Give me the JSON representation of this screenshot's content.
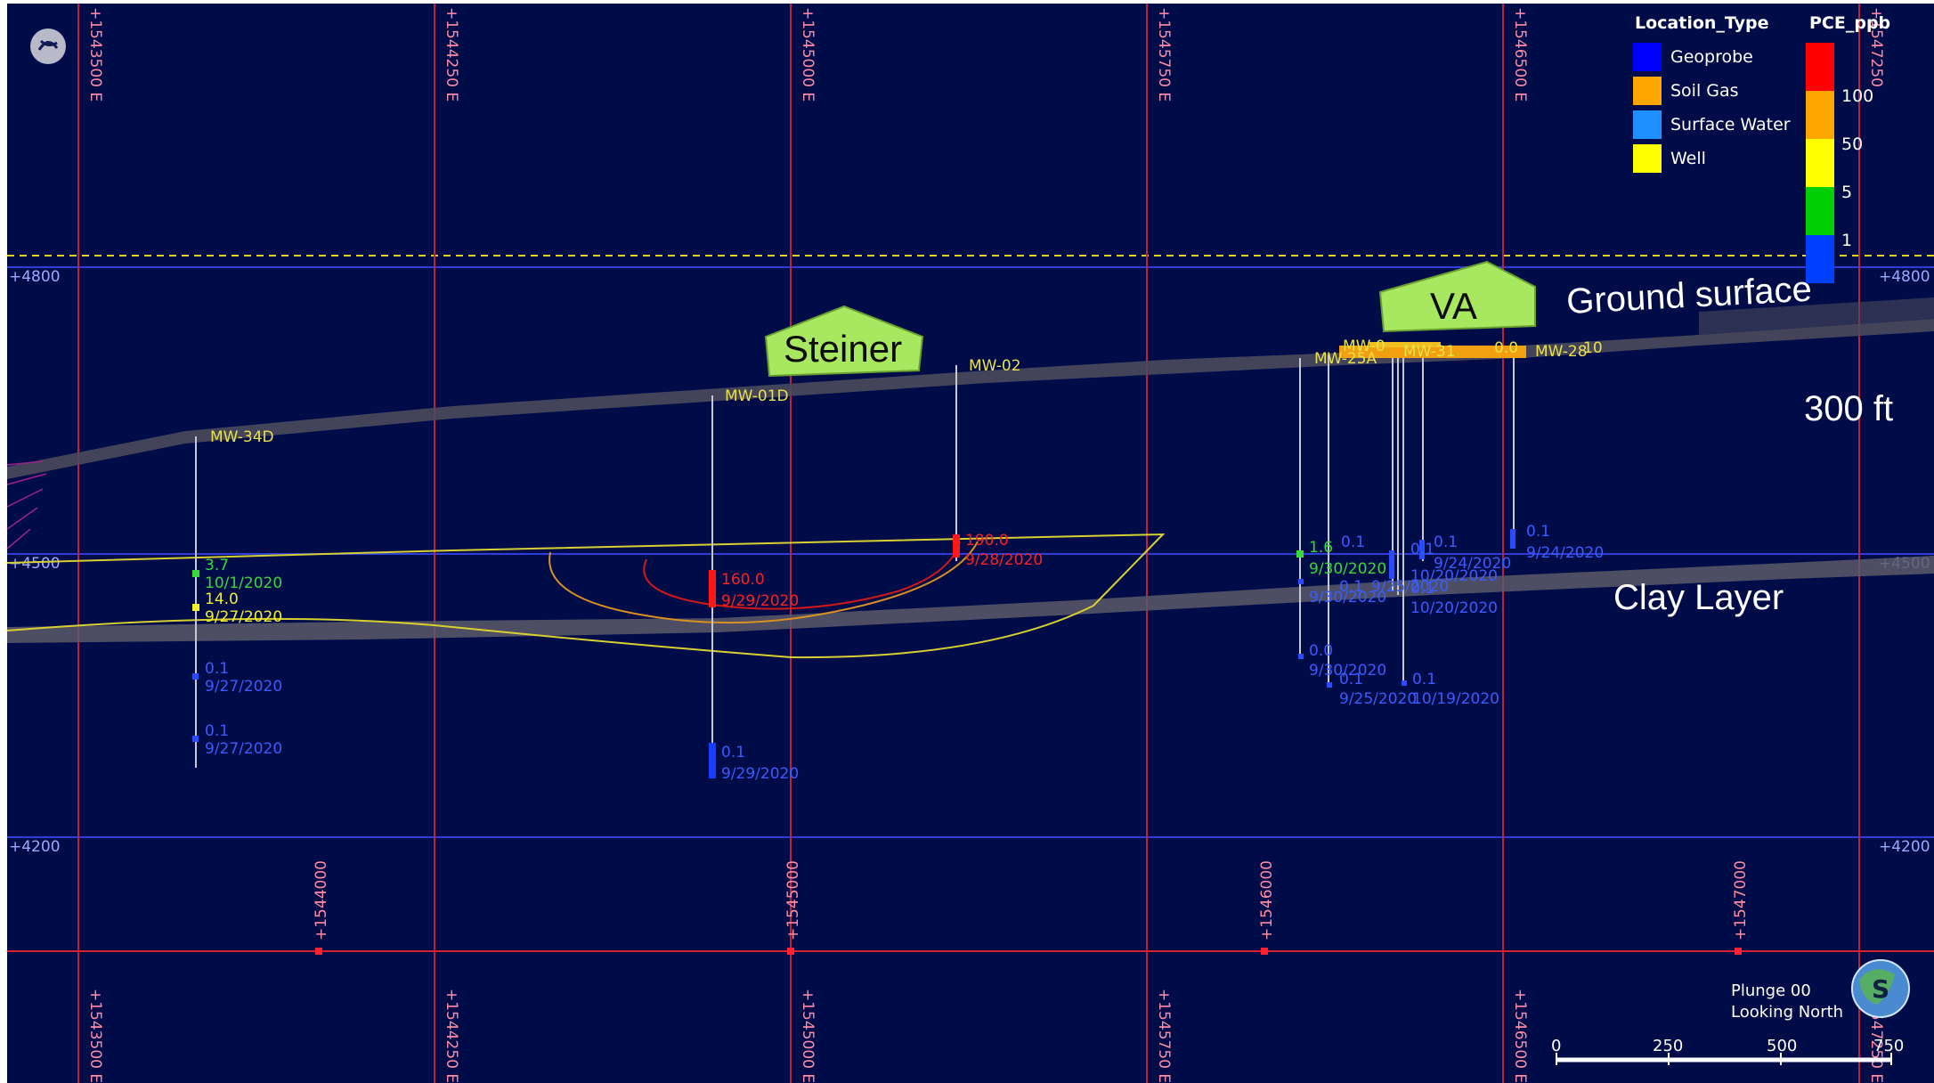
{
  "scene": {
    "view": {
      "plunge": "Plunge 00",
      "direction": "Looking North"
    },
    "grid_x_labels": [
      "+1543500 E",
      "+1544250 E",
      "+1545000 E",
      "+1545750 E",
      "+1546500 E",
      "+1547250"
    ],
    "grid_x_labels_bottom": [
      "+1543500 E",
      "+1544250 E",
      "+1545000 E",
      "+1545750 E",
      "+1546500 E",
      "+1547250 E"
    ],
    "grid_y_labels": [
      "+4800",
      "+4500",
      "+4200"
    ],
    "grid_mid_labels": [
      "+1544000",
      "+1545000",
      "+1546000",
      "+1547000"
    ],
    "annotations": {
      "ground_surface": "Ground surface",
      "clay_layer": "Clay Layer",
      "scale_note": "300 ft",
      "site_1": "Steiner",
      "site_2": "VA"
    },
    "well_labels": {
      "mw34": "MW-34D",
      "mw01": "MW-01D",
      "mw02": "MW-02",
      "mw25": "MW-25A",
      "mw31": "MW-31",
      "mw28": "MW-28",
      "mw_cluster": "MW-0",
      "mw_cluster_val": "0.0",
      "mw_right_val": "10"
    },
    "samples": [
      {
        "value": "3.7",
        "date": "10/1/2020",
        "color": "green"
      },
      {
        "value": "14.0",
        "date": "9/27/2020",
        "color": "yellow"
      },
      {
        "value": "0.1",
        "date": "9/27/2020",
        "color": "blue"
      },
      {
        "value": "0.1",
        "date": "9/27/2020",
        "color": "blue"
      },
      {
        "value": "160.0",
        "date": "9/29/2020",
        "color": "red"
      },
      {
        "value": "0.1",
        "date": "9/29/2020",
        "color": "blue"
      },
      {
        "value": "190.0",
        "date": "9/28/2020",
        "color": "red"
      },
      {
        "value": "1.6",
        "date": "9/30/2020",
        "color": "green"
      },
      {
        "value": "0.1",
        "date": "9/30/2020",
        "color": "blue"
      },
      {
        "value": "0.1",
        "date": "9/25/2020",
        "color": "blue"
      },
      {
        "value": "0.0",
        "date": "9/30/2020",
        "color": "blue"
      },
      {
        "value": "0.1",
        "date": "9/25/2020",
        "color": "blue"
      },
      {
        "value": "0.1",
        "date": "10/19/2020",
        "color": "blue"
      },
      {
        "value": "0.1",
        "date": "10/20/2020",
        "color": "blue"
      },
      {
        "value": "0.1",
        "date": "10/20/2020",
        "color": "blue"
      },
      {
        "value": "0.1",
        "date": "9/24/2020",
        "color": "blue"
      },
      {
        "value": "0.1",
        "date": "9/24/2020",
        "color": "blue"
      }
    ],
    "legend": {
      "location_title": "Location_Type",
      "location_items": [
        {
          "label": "Geoprobe",
          "color": "#0000ff"
        },
        {
          "label": "Soil Gas",
          "color": "#ffa500"
        },
        {
          "label": "Surface Water",
          "color": "#1e90ff"
        },
        {
          "label": "Well",
          "color": "#ffff00"
        }
      ],
      "pce_title": "PCE_ppb",
      "pce_ticks": [
        "100",
        "50",
        "5",
        "1"
      ],
      "pce_colors": [
        "#ff0000",
        "#ffa500",
        "#ffff00",
        "#00d000",
        "#0040ff"
      ]
    },
    "scale_bar": {
      "ticks": [
        "0",
        "250",
        "500",
        "750"
      ]
    }
  }
}
